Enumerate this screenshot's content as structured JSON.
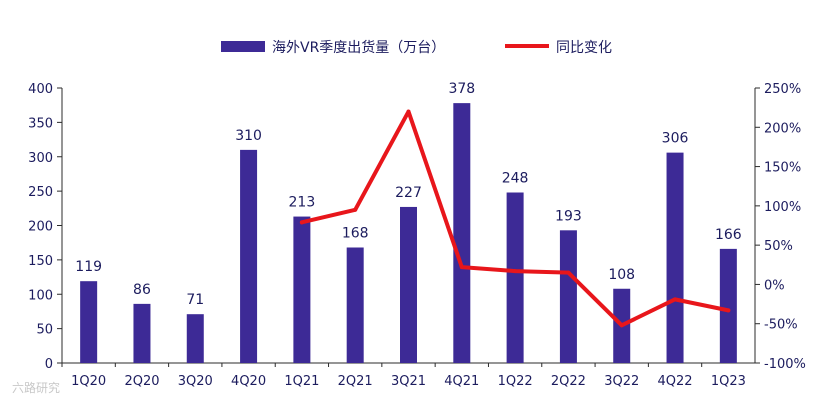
{
  "chart_data": {
    "type": "bar",
    "categories": [
      "1Q20",
      "2Q20",
      "3Q20",
      "4Q20",
      "1Q21",
      "2Q21",
      "3Q21",
      "4Q21",
      "1Q22",
      "2Q22",
      "3Q22",
      "4Q22",
      "1Q23"
    ],
    "series": [
      {
        "name": "海外VR季度出货量（万台）",
        "type": "bar",
        "axis": "left",
        "color": "#3d2a96",
        "values": [
          119,
          86,
          71,
          310,
          213,
          168,
          227,
          378,
          248,
          193,
          108,
          306,
          166
        ]
      },
      {
        "name": "同比变化",
        "type": "line",
        "axis": "right",
        "color": "#e8161b",
        "values": [
          null,
          null,
          null,
          null,
          0.79,
          0.95,
          2.2,
          0.22,
          0.17,
          0.15,
          -0.52,
          -0.19,
          -0.33
        ]
      }
    ],
    "y_left": {
      "min": 0,
      "max": 400,
      "step": 50,
      "ticks": [
        "0",
        "50",
        "100",
        "150",
        "200",
        "250",
        "300",
        "350",
        "400"
      ]
    },
    "y_right": {
      "min": -1.0,
      "max": 2.5,
      "step": 0.5,
      "ticks": [
        "-100%",
        "-50%",
        "0%",
        "50%",
        "100%",
        "150%",
        "200%",
        "250%"
      ]
    },
    "grid": false,
    "legend_position": "top-center"
  },
  "watermark": "六路研究"
}
